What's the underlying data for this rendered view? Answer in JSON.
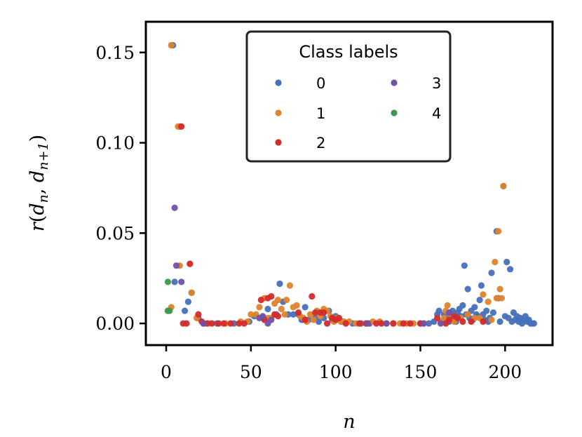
{
  "chart_data": {
    "type": "scatter",
    "title": "",
    "xlabel": "n",
    "ylabel": "r(d_n, d_{n+1})",
    "xlim": [
      -12,
      228
    ],
    "ylim": [
      -0.012,
      0.167
    ],
    "xticks": [
      0,
      50,
      100,
      150,
      200
    ],
    "xtick_labels": [
      "0",
      "50",
      "100",
      "150",
      "200"
    ],
    "yticks": [
      0.0,
      0.05,
      0.1,
      0.15
    ],
    "ytick_labels": [
      "0.00",
      "0.05",
      "0.10",
      "0.15"
    ],
    "grid": false,
    "legend": {
      "title": "Class labels",
      "placement": "top-center",
      "columns": 2,
      "entries": [
        "0",
        "1",
        "2",
        "3",
        "4"
      ]
    },
    "series": [
      {
        "name": "0",
        "color": "#4470b9",
        "points": [
          [
            4,
            0.154
          ],
          [
            5,
            0.023
          ],
          [
            8,
            0.109
          ],
          [
            11,
            0.007
          ],
          [
            13,
            0.012
          ],
          [
            15,
            0.017
          ],
          [
            19,
            0.003
          ],
          [
            22,
            0.0
          ],
          [
            30,
            0.0
          ],
          [
            40,
            0.0
          ],
          [
            49,
            0.001
          ],
          [
            52,
            0.004
          ],
          [
            57,
            0.003
          ],
          [
            60,
            0.008
          ],
          [
            65,
            0.005
          ],
          [
            67,
            0.022
          ],
          [
            69,
            0.012
          ],
          [
            72,
            0.005
          ],
          [
            75,
            0.005
          ],
          [
            78,
            0.005
          ],
          [
            80,
            0.002
          ],
          [
            82,
            0.009
          ],
          [
            84,
            0.002
          ],
          [
            88,
            0.003
          ],
          [
            90,
            0.001
          ],
          [
            93,
            0.003
          ],
          [
            96,
            0.007
          ],
          [
            98,
            0.002
          ],
          [
            100,
            0.004
          ],
          [
            104,
            0.001
          ],
          [
            110,
            0.0
          ],
          [
            115,
            0.0
          ],
          [
            120,
            0.0
          ],
          [
            130,
            0.0
          ],
          [
            150,
            0.0
          ],
          [
            155,
            0.0
          ],
          [
            158,
            0.001
          ],
          [
            160,
            0.005
          ],
          [
            161,
            0.007
          ],
          [
            163,
            0.001
          ],
          [
            164,
            0.005
          ],
          [
            165,
            0.003
          ],
          [
            167,
            0.001
          ],
          [
            168,
            0.004
          ],
          [
            169,
            0.007
          ],
          [
            170,
            0.003
          ],
          [
            171,
            0.001
          ],
          [
            172,
            0.006
          ],
          [
            173,
            0.008
          ],
          [
            174,
            0.004
          ],
          [
            175,
            0.01
          ],
          [
            176,
            0.032
          ],
          [
            177,
            0.005
          ],
          [
            178,
            0.019
          ],
          [
            179,
            0.003
          ],
          [
            180,
            0.007
          ],
          [
            181,
            0.002
          ],
          [
            182,
            0.009
          ],
          [
            183,
            0.005
          ],
          [
            184,
            0.004
          ],
          [
            185,
            0.013
          ],
          [
            186,
            0.021
          ],
          [
            187,
            0.005
          ],
          [
            188,
            0.002
          ],
          [
            189,
            0.007
          ],
          [
            190,
            0.001
          ],
          [
            191,
            0.003
          ],
          [
            192,
            0.028
          ],
          [
            193,
            0.006
          ],
          [
            195,
            0.051
          ],
          [
            196,
            0.014
          ],
          [
            197,
            0.001
          ],
          [
            199,
            0.076
          ],
          [
            200,
            0.004
          ],
          [
            201,
            0.034
          ],
          [
            202,
            0.003
          ],
          [
            203,
            0.03
          ],
          [
            204,
            0.001
          ],
          [
            205,
            0.006
          ],
          [
            206,
            0.002
          ],
          [
            207,
            0.004
          ],
          [
            208,
            0.001
          ],
          [
            209,
            0.003
          ],
          [
            210,
            0.0
          ],
          [
            211,
            0.002
          ],
          [
            212,
            0.004
          ],
          [
            213,
            0.001
          ],
          [
            214,
            0.002
          ],
          [
            215,
            0.0
          ],
          [
            216,
            0.0
          ],
          [
            217,
            0.0
          ]
        ]
      },
      {
        "name": "1",
        "color": "#e0832d",
        "points": [
          [
            1,
            0.007
          ],
          [
            3,
            0.154
          ],
          [
            3,
            0.009
          ],
          [
            7,
            0.109
          ],
          [
            8,
            0.032
          ],
          [
            14,
            0.033
          ],
          [
            15,
            0.017
          ],
          [
            18,
            0.003
          ],
          [
            25,
            0.0
          ],
          [
            35,
            0.0
          ],
          [
            44,
            0.001
          ],
          [
            48,
            0.001
          ],
          [
            50,
            0.005
          ],
          [
            53,
            0.005
          ],
          [
            55,
            0.009
          ],
          [
            58,
            0.014
          ],
          [
            60,
            0.003
          ],
          [
            62,
            0.003
          ],
          [
            64,
            0.011
          ],
          [
            66,
            0.013
          ],
          [
            68,
            0.008
          ],
          [
            70,
            0.005
          ],
          [
            71,
            0.013
          ],
          [
            73,
            0.021
          ],
          [
            75,
            0.009
          ],
          [
            77,
            0.01
          ],
          [
            79,
            0.004
          ],
          [
            81,
            0.003
          ],
          [
            83,
            0.001
          ],
          [
            85,
            0.005
          ],
          [
            87,
            0.002
          ],
          [
            89,
            0.007
          ],
          [
            91,
            0.004
          ],
          [
            93,
            0.008
          ],
          [
            95,
            0.007
          ],
          [
            97,
            0.004
          ],
          [
            99,
            0.001
          ],
          [
            101,
            0.003
          ],
          [
            103,
            0.001
          ],
          [
            105,
            0.001
          ],
          [
            108,
            0.001
          ],
          [
            112,
            0.0
          ],
          [
            118,
            0.0
          ],
          [
            122,
            0.001
          ],
          [
            126,
            0.001
          ],
          [
            130,
            0.0
          ],
          [
            134,
            0.0
          ],
          [
            138,
            0.0
          ],
          [
            142,
            0.0
          ],
          [
            146,
            0.0
          ],
          [
            152,
            0.0
          ],
          [
            162,
            0.001
          ],
          [
            164,
            0.003
          ],
          [
            165,
            0.007
          ],
          [
            166,
            0.01
          ],
          [
            168,
            0.004
          ],
          [
            170,
            0.001
          ],
          [
            174,
            0.003
          ],
          [
            178,
            0.005
          ],
          [
            182,
            0.003
          ],
          [
            185,
            0.003
          ],
          [
            187,
            0.016
          ],
          [
            190,
            0.012
          ],
          [
            192,
            0.002
          ],
          [
            194,
            0.034
          ],
          [
            195,
            0.014
          ],
          [
            196,
            0.051
          ],
          [
            197,
            0.019
          ],
          [
            198,
            0.014
          ],
          [
            199,
            0.076
          ]
        ]
      },
      {
        "name": "2",
        "color": "#d42a2a",
        "points": [
          [
            9,
            0.109
          ],
          [
            10,
            0.0
          ],
          [
            12,
            0.0
          ],
          [
            14,
            0.033
          ],
          [
            19,
            0.005
          ],
          [
            21,
            0.001
          ],
          [
            24,
            0.0
          ],
          [
            27,
            0.0
          ],
          [
            31,
            0.0
          ],
          [
            34,
            0.0
          ],
          [
            38,
            0.0
          ],
          [
            43,
            0.0
          ],
          [
            46,
            0.0
          ],
          [
            56,
            0.013
          ],
          [
            58,
            0.002
          ],
          [
            60,
            0.014
          ],
          [
            62,
            0.015
          ],
          [
            64,
            0.005
          ],
          [
            66,
            0.004
          ],
          [
            78,
            0.006
          ],
          [
            82,
            0.002
          ],
          [
            86,
            0.015
          ],
          [
            88,
            0.006
          ],
          [
            91,
            0.006
          ],
          [
            93,
            0.006
          ],
          [
            95,
            0.0
          ],
          [
            98,
            0.003
          ],
          [
            100,
            0.002
          ],
          [
            102,
            0.003
          ],
          [
            106,
            0.0
          ],
          [
            114,
            0.0
          ],
          [
            118,
            0.0
          ],
          [
            124,
            0.0
          ],
          [
            127,
            0.0
          ],
          [
            134,
            0.0
          ],
          [
            140,
            0.0
          ],
          [
            144,
            0.0
          ],
          [
            150,
            0.0
          ],
          [
            160,
            0.003
          ],
          [
            165,
            0.0
          ],
          [
            167,
            0.002
          ],
          [
            170,
            0.004
          ],
          [
            172,
            0.003
          ],
          [
            175,
            0.001
          ],
          [
            180,
            0.001
          ],
          [
            187,
            0.001
          ]
        ]
      },
      {
        "name": "3",
        "color": "#7251a8",
        "points": [
          [
            5,
            0.064
          ],
          [
            6,
            0.032
          ],
          [
            9,
            0.023
          ],
          [
            22,
            0.0
          ],
          [
            55,
            0.003
          ],
          [
            57,
            0.004
          ],
          [
            60,
            0.0
          ],
          [
            62,
            0.002
          ],
          [
            119,
            0.0
          ],
          [
            130,
            0.0
          ],
          [
            152,
            0.0
          ],
          [
            162,
            0.0
          ],
          [
            167,
            0.006
          ]
        ]
      },
      {
        "name": "4",
        "color": "#3c9b4a",
        "points": [
          [
            1,
            0.023
          ],
          [
            1,
            0.007
          ],
          [
            2,
            0.007
          ]
        ]
      }
    ]
  }
}
